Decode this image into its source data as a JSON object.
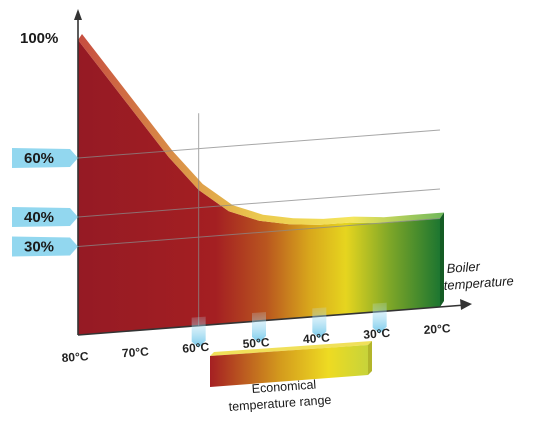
{
  "chart_data": {
    "type": "area",
    "title": "",
    "xlabel": "Boiler temperature",
    "ylabel": "",
    "x_ticks": [
      "80°C",
      "70°C",
      "60°C",
      "50°C",
      "40°C",
      "30°C",
      "20°C"
    ],
    "y_ticks": [
      "100%",
      "60%",
      "40%",
      "30%"
    ],
    "x": [
      80,
      75,
      70,
      65,
      60,
      55,
      50,
      45,
      40,
      35,
      30,
      25,
      20
    ],
    "y": [
      100,
      86,
      72,
      58,
      46,
      38,
      34,
      32,
      31,
      31,
      30,
      30,
      30
    ],
    "ylim": [
      0,
      100
    ],
    "highlight_range": {
      "label": "Economical temperature range",
      "label_line1": "Economical",
      "label_line2": "temperature range",
      "from": 60,
      "to": 30
    },
    "colors": {
      "hot": "#9a1c22",
      "warm": "#d9a21c",
      "mid": "#e8d821",
      "cool": "#1f7a33",
      "accent": "#7fd0ec"
    }
  }
}
